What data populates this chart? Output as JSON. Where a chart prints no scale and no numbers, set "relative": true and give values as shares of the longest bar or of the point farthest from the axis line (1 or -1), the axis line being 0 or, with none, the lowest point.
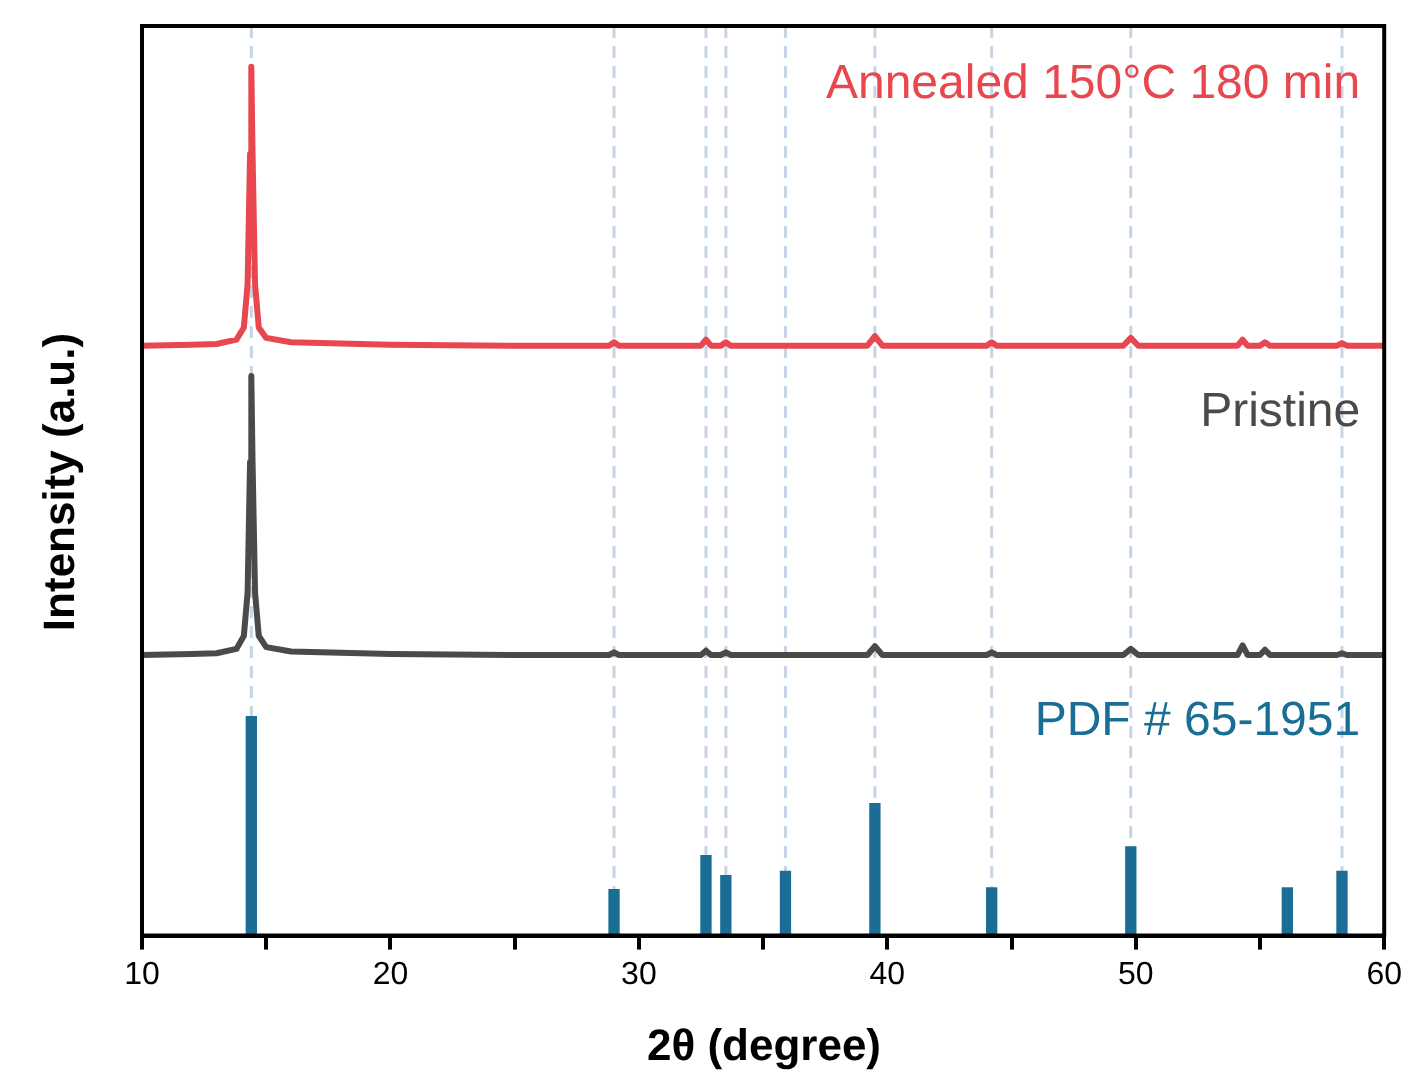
{
  "chart_data": {
    "type": "line",
    "relative": true,
    "xlabel": "2θ (degree)",
    "ylabel": "Intensity (a.u.)",
    "xlim": [
      10,
      60
    ],
    "xticks": [
      10,
      {
        "value": 15,
        "label": null
      },
      20,
      {
        "value": 25,
        "label": null
      },
      30,
      {
        "value": 35,
        "label": null
      },
      40,
      {
        "value": 45,
        "label": null
      },
      50,
      {
        "value": 55,
        "label": null
      },
      60
    ],
    "legend": false,
    "grid": false,
    "marker": "none",
    "line_style": "solid",
    "series": [
      {
        "name": "Annealed 150°C 180 min",
        "color": "#e8474f",
        "x": [
          10,
          12,
          13,
          13.8,
          14.1,
          14.25,
          14.35,
          14.4,
          14.45,
          14.55,
          14.7,
          15,
          16,
          20,
          25,
          28.8,
          29,
          29.2,
          32.5,
          32.7,
          32.9,
          33.3,
          33.5,
          33.7,
          39.2,
          39.5,
          39.8,
          44,
          44.2,
          44.4,
          49.5,
          49.8,
          50.1,
          54.1,
          54.3,
          54.5,
          55,
          55.2,
          55.4,
          58.1,
          58.3,
          58.5,
          60
        ],
        "values": [
          0.679,
          0.68,
          0.681,
          0.686,
          0.7,
          0.75,
          0.9,
          1.0,
          0.9,
          0.75,
          0.7,
          0.688,
          0.683,
          0.68,
          0.679,
          0.679,
          0.683,
          0.679,
          0.679,
          0.686,
          0.679,
          0.679,
          0.683,
          0.679,
          0.679,
          0.69,
          0.679,
          0.679,
          0.683,
          0.679,
          0.679,
          0.688,
          0.679,
          0.679,
          0.686,
          0.679,
          0.679,
          0.683,
          0.679,
          0.679,
          0.682,
          0.679,
          0.679
        ]
      },
      {
        "name": "Pristine",
        "color": "#4a4a4a",
        "x": [
          10,
          12,
          13,
          13.8,
          14.1,
          14.25,
          14.35,
          14.4,
          14.45,
          14.55,
          14.7,
          15,
          16,
          20,
          25,
          28.8,
          29,
          29.2,
          32.5,
          32.7,
          32.9,
          33.3,
          33.5,
          33.7,
          39.2,
          39.5,
          39.8,
          44,
          44.2,
          44.4,
          49.5,
          49.8,
          50.1,
          54.1,
          54.3,
          54.5,
          55,
          55.2,
          55.4,
          58.1,
          58.3,
          58.5,
          60
        ],
        "values": [
          0.323,
          0.324,
          0.325,
          0.33,
          0.345,
          0.395,
          0.545,
          0.644,
          0.545,
          0.395,
          0.345,
          0.332,
          0.327,
          0.324,
          0.323,
          0.323,
          0.326,
          0.323,
          0.323,
          0.328,
          0.323,
          0.323,
          0.326,
          0.323,
          0.323,
          0.333,
          0.323,
          0.323,
          0.326,
          0.323,
          0.323,
          0.33,
          0.323,
          0.323,
          0.334,
          0.323,
          0.323,
          0.329,
          0.323,
          0.323,
          0.325,
          0.323,
          0.323
        ]
      },
      {
        "name": "PDF # 65-1951",
        "type": "bar",
        "color": "#1a6e96",
        "x": [
          14.4,
          29.0,
          32.7,
          33.5,
          35.9,
          39.5,
          44.2,
          49.8,
          56.1,
          58.3
        ],
        "values": [
          0.252,
          0.053,
          0.092,
          0.069,
          0.074,
          0.152,
          0.055,
          0.102,
          0.055,
          0.074
        ]
      }
    ],
    "ref_lines": [
      {
        "axis": "x",
        "value": 14.4,
        "color": "#c5d5e6",
        "line_style": "dashed"
      },
      {
        "axis": "x",
        "value": 29.0,
        "color": "#c5d5e6",
        "line_style": "dashed"
      },
      {
        "axis": "x",
        "value": 32.7,
        "color": "#c5d5e6",
        "line_style": "dashed"
      },
      {
        "axis": "x",
        "value": 33.5,
        "color": "#c5d5e6",
        "line_style": "dashed"
      },
      {
        "axis": "x",
        "value": 35.9,
        "color": "#c5d5e6",
        "line_style": "dashed"
      },
      {
        "axis": "x",
        "value": 39.5,
        "color": "#c5d5e6",
        "line_style": "dashed"
      },
      {
        "axis": "x",
        "value": 44.2,
        "color": "#c5d5e6",
        "line_style": "dashed"
      },
      {
        "axis": "x",
        "value": 49.8,
        "color": "#c5d5e6",
        "line_style": "dashed"
      },
      {
        "axis": "x",
        "value": 58.3,
        "color": "#c5d5e6",
        "line_style": "dashed"
      }
    ]
  }
}
